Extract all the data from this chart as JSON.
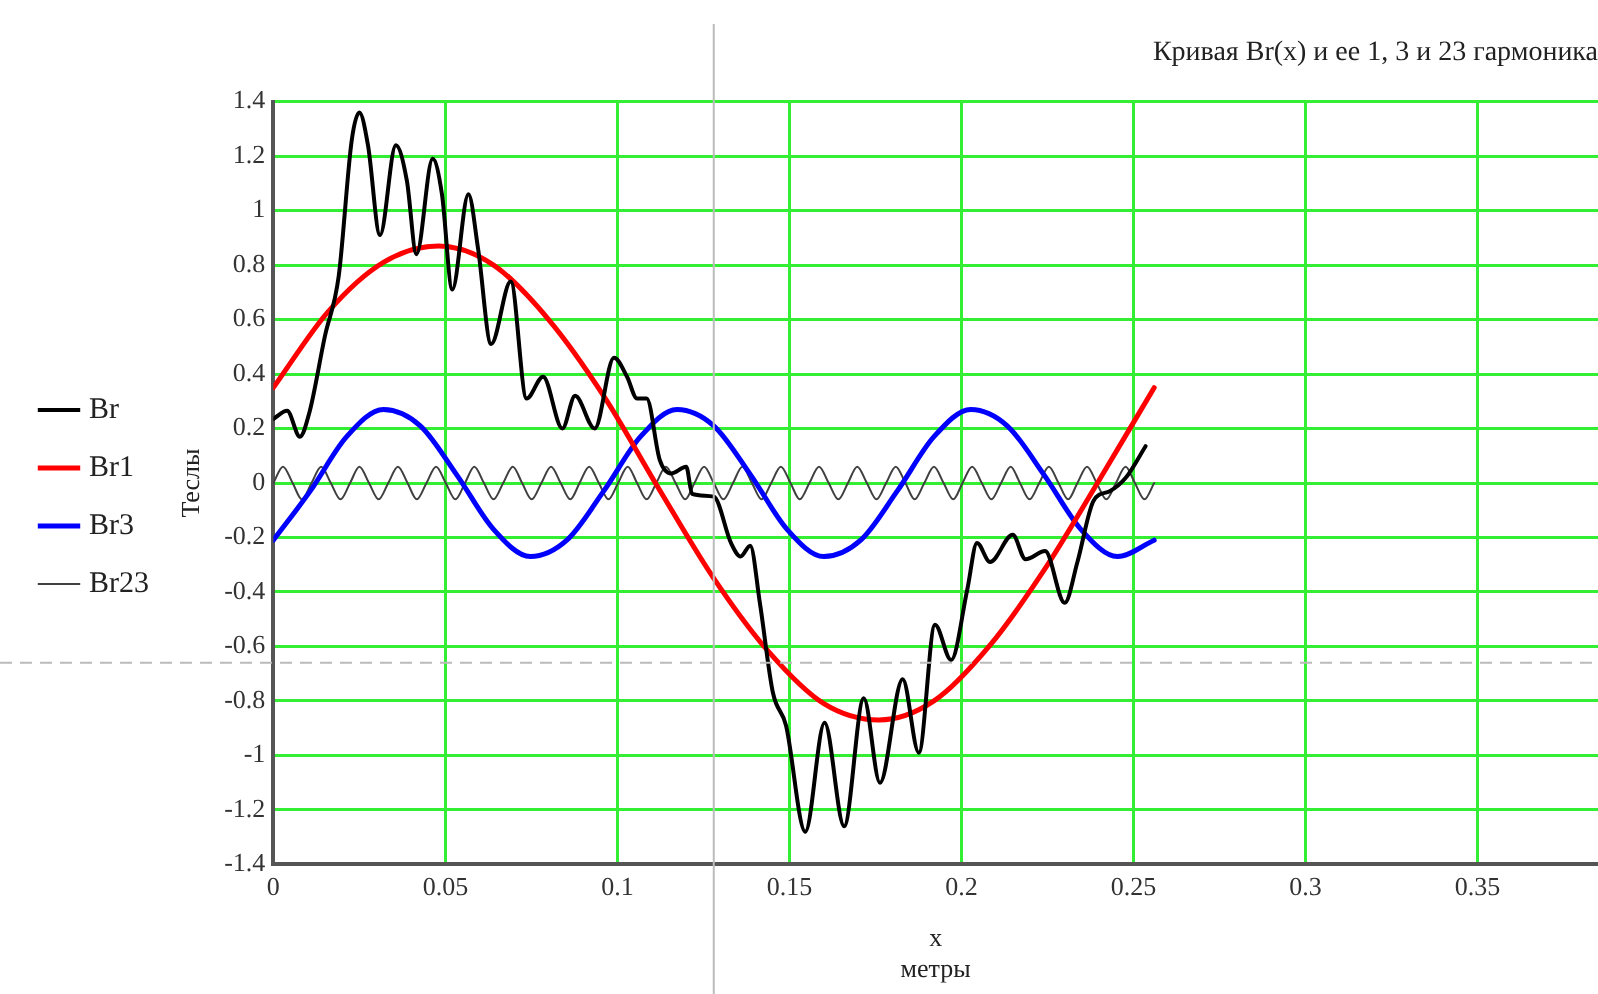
{
  "chart_data": {
    "type": "line",
    "title": "Кривая Br(x) и ее 1, 3 и 23 гармоника",
    "xlabel": "x\nметры",
    "ylabel": "Теслы",
    "xlim": [
      0,
      0.385
    ],
    "xticks": [
      0,
      0.05,
      0.1,
      0.15,
      0.2,
      0.25,
      0.3,
      0.35
    ],
    "ylim": [
      -1.4,
      1.4
    ],
    "yticks": [
      -1.4,
      -1.2,
      -1,
      -0.8,
      -0.6,
      -0.4,
      -0.2,
      0,
      0.2,
      0.4,
      0.6,
      0.8,
      1,
      1.2,
      1.4
    ],
    "grid": true,
    "legend": "left",
    "marker": "none",
    "line_style": "solid",
    "ref_lines": [
      {
        "axis": "x",
        "value": 0.128,
        "label": null,
        "color": "#bbbbbb",
        "line_style": "solid"
      },
      {
        "axis": "y",
        "value": -0.66,
        "label": null,
        "color": "#bbbbbb",
        "line_style": "dashed"
      }
    ],
    "series": [
      {
        "name": "Br",
        "color": "#000000",
        "x": [
          0,
          0.004,
          0.0077,
          0.0105,
          0.015,
          0.019,
          0.0228,
          0.025,
          0.0275,
          0.031,
          0.0356,
          0.0388,
          0.0416,
          0.0463,
          0.049,
          0.052,
          0.0567,
          0.0595,
          0.0633,
          0.069,
          0.0736,
          0.0784,
          0.084,
          0.0877,
          0.0934,
          0.099,
          0.1028,
          0.1057,
          0.1085,
          0.1123,
          0.1156,
          0.12,
          0.1217,
          0.128,
          0.133,
          0.1358,
          0.1386,
          0.1414,
          0.1452,
          0.149,
          0.1546,
          0.1602,
          0.1659,
          0.1716,
          0.1763,
          0.1829,
          0.1876,
          0.1923,
          0.197,
          0.2017,
          0.2045,
          0.2083,
          0.2149,
          0.2186,
          0.2243,
          0.23,
          0.2337,
          0.2384,
          0.2431,
          0.2478,
          0.2535
        ],
        "values": [
          0.235,
          0.265,
          0.17,
          0.26,
          0.54,
          0.76,
          1.26,
          1.36,
          1.24,
          0.91,
          1.24,
          1.11,
          0.84,
          1.19,
          1.06,
          0.71,
          1.06,
          0.86,
          0.51,
          0.74,
          0.31,
          0.39,
          0.2,
          0.32,
          0.2,
          0.46,
          0.39,
          0.31,
          0.31,
          0.085,
          0.035,
          0.06,
          -0.04,
          -0.05,
          -0.22,
          -0.27,
          -0.23,
          -0.44,
          -0.77,
          -0.89,
          -1.28,
          -0.88,
          -1.26,
          -0.79,
          -1.1,
          -0.72,
          -0.99,
          -0.52,
          -0.65,
          -0.39,
          -0.22,
          -0.29,
          -0.19,
          -0.28,
          -0.25,
          -0.44,
          -0.29,
          -0.065,
          -0.03,
          0.02,
          0.135
        ]
      },
      {
        "name": "Br1",
        "color": "#ff0000",
        "x": [
          0,
          0.016,
          0.032,
          0.048,
          0.064,
          0.08,
          0.096,
          0.112,
          0.128,
          0.144,
          0.16,
          0.176,
          0.192,
          0.208,
          0.224,
          0.24,
          0.256
        ],
        "values": [
          0.35,
          0.63,
          0.81,
          0.87,
          0.8,
          0.6,
          0.32,
          -0.02,
          -0.35,
          -0.62,
          -0.81,
          -0.87,
          -0.8,
          -0.6,
          -0.32,
          0.01,
          0.35
        ]
      },
      {
        "name": "Br3",
        "color": "#0000ff",
        "x": [
          0,
          0.0107,
          0.0213,
          0.032,
          0.0427,
          0.0533,
          0.064,
          0.0747,
          0.0853,
          0.096,
          0.1067,
          0.1173,
          0.128,
          0.1387,
          0.1493,
          0.16,
          0.1707,
          0.1813,
          0.192,
          0.2027,
          0.2133,
          0.224,
          0.2347,
          0.2453,
          0.256
        ],
        "values": [
          -0.21,
          -0.03,
          0.17,
          0.27,
          0.21,
          0.03,
          -0.17,
          -0.27,
          -0.21,
          -0.03,
          0.17,
          0.27,
          0.21,
          0.03,
          -0.17,
          -0.27,
          -0.21,
          -0.03,
          0.17,
          0.27,
          0.21,
          0.03,
          -0.17,
          -0.27,
          -0.21
        ]
      },
      {
        "name": "Br23",
        "color": "#404040",
        "x": [
          0,
          0.0028,
          0.0056,
          0.0083,
          0.0111,
          0.0139,
          0.0167,
          0.0195,
          0.0223,
          0.025,
          0.0278,
          0.0306,
          0.0334,
          0.0362,
          0.039,
          0.0417,
          0.0445,
          0.0473,
          0.0501,
          0.0529,
          0.0557,
          0.0584,
          0.0612,
          0.064,
          0.0668,
          0.0696,
          0.0723,
          0.0751,
          0.0779,
          0.0807,
          0.0835,
          0.0863,
          0.089,
          0.0918,
          0.0946,
          0.0974,
          0.1002,
          0.103,
          0.1057,
          0.1085,
          0.1113,
          0.1141,
          0.1169,
          0.1197,
          0.1224,
          0.1252,
          0.128,
          0.1308,
          0.1336,
          0.1363,
          0.1391,
          0.1419,
          0.1447,
          0.1475,
          0.1503,
          0.153,
          0.1558,
          0.1586,
          0.1614,
          0.1642,
          0.167,
          0.1697,
          0.1725,
          0.1753,
          0.1781,
          0.1809,
          0.1837,
          0.1864,
          0.1892,
          0.192,
          0.1948,
          0.1976,
          0.2003,
          0.2031,
          0.2059,
          0.2087,
          0.2115,
          0.2143,
          0.217,
          0.2198,
          0.2226,
          0.2254,
          0.2282,
          0.231,
          0.2337,
          0.2365,
          0.2393,
          0.2421,
          0.2449,
          0.2477,
          0.2504,
          0.2532,
          0.256
        ],
        "values": [
          0,
          0.06,
          0,
          -0.06,
          0,
          0.06,
          0,
          -0.06,
          0,
          0.06,
          0,
          -0.06,
          0,
          0.06,
          0,
          -0.06,
          0,
          0.06,
          0,
          -0.06,
          0,
          0.06,
          0,
          -0.06,
          0,
          0.06,
          0,
          -0.06,
          0,
          0.06,
          0,
          -0.06,
          0,
          0.06,
          0,
          -0.06,
          0,
          0.06,
          0,
          -0.06,
          0,
          0.06,
          0,
          -0.06,
          0,
          0.06,
          0,
          -0.06,
          0,
          0.06,
          0,
          -0.06,
          0,
          0.06,
          0,
          -0.06,
          0,
          0.06,
          0,
          -0.06,
          0,
          0.06,
          0,
          -0.06,
          0,
          0.06,
          0,
          -0.06,
          0,
          0.06,
          0,
          -0.06,
          0,
          0.06,
          0,
          -0.06,
          0,
          0.06,
          0,
          -0.06,
          0,
          0.06,
          0,
          -0.06,
          0,
          0.06,
          0,
          -0.06,
          0,
          0.06,
          0,
          -0.06,
          0
        ]
      }
    ]
  }
}
